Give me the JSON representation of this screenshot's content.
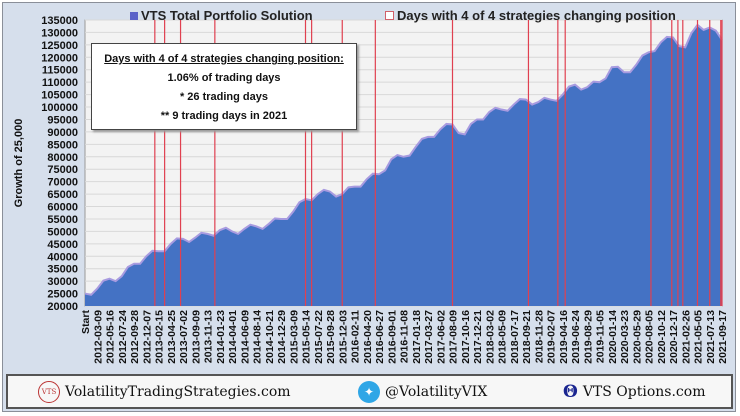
{
  "legend": {
    "series_label": "VTS Total Portfolio Solution",
    "lines_label": "Days with 4 of 4 strategies changing position",
    "series_color": "#4472c4",
    "line_color": "#e04050"
  },
  "annotation": {
    "heading": "Days with 4 of 4 strategies changing position:",
    "line1": "1.06% of trading days",
    "line2": "* 26 trading days",
    "line3": "** 9 trading days in 2021"
  },
  "footer": {
    "site": "VolatilityTradingStrategies.com",
    "logo_text": "VTS",
    "twitter": "@VolatilityVIX",
    "options": "VTS Options.com"
  },
  "chart_data": {
    "type": "area",
    "ylabel": "Growth of 25,000",
    "ylim": [
      20000,
      135000
    ],
    "ytick_step": 5000,
    "grid": true,
    "legend_placement": "top",
    "categories": [
      "Start",
      "2012-03-09",
      "2012-05-16",
      "2012-07-24",
      "2012-09-28",
      "2012-12-07",
      "2013-02-15",
      "2013-04-25",
      "2013-07-02",
      "2013-09-09",
      "2013-11-13",
      "2014-01-23",
      "2014-04-01",
      "2014-06-09",
      "2014-08-14",
      "2014-10-21",
      "2014-12-29",
      "2015-03-09",
      "2015-05-14",
      "2015-07-22",
      "2015-09-28",
      "2015-12-03",
      "2016-02-11",
      "2016-04-20",
      "2016-06-27",
      "2016-09-01",
      "2016-11-08",
      "2017-01-18",
      "2017-03-27",
      "2017-06-02",
      "2017-08-09",
      "2017-10-16",
      "2017-12-21",
      "2018-03-02",
      "2018-05-09",
      "2018-07-17",
      "2018-09-21",
      "2018-11-28",
      "2019-02-07",
      "2019-04-16",
      "2019-06-24",
      "2019-08-29",
      "2019-11-05",
      "2020-01-14",
      "2020-03-23",
      "2020-05-29",
      "2020-08-05",
      "2020-10-12",
      "2020-12-17",
      "2021-02-26",
      "2021-05-05",
      "2021-07-13",
      "2021-09-17"
    ],
    "series": [
      {
        "name": "VTS Total Portfolio Solution",
        "values": [
          25000,
          27000,
          31000,
          32000,
          37000,
          40000,
          42000,
          45000,
          47000,
          47500,
          49000,
          50500,
          50000,
          51000,
          52000,
          53000,
          55000,
          58000,
          63000,
          65000,
          66000,
          65000,
          68000,
          71000,
          73000,
          79000,
          80000,
          84000,
          88000,
          91000,
          93000,
          89000,
          95000,
          98000,
          99000,
          101000,
          103000,
          102000,
          103000,
          105000,
          109000,
          108000,
          110000,
          116000,
          114000,
          117000,
          122000,
          126000,
          128000,
          124000,
          133000,
          132000,
          127000
        ]
      }
    ],
    "event_lines_category_index": [
      5.7,
      6.5,
      7.8,
      10.6,
      18.0,
      18.5,
      21.0,
      23.7,
      30.0,
      36.2,
      38.6,
      39.2,
      46.2,
      47.9,
      48.4,
      48.8,
      50.0,
      51.0,
      51.9,
      52.0
    ]
  }
}
